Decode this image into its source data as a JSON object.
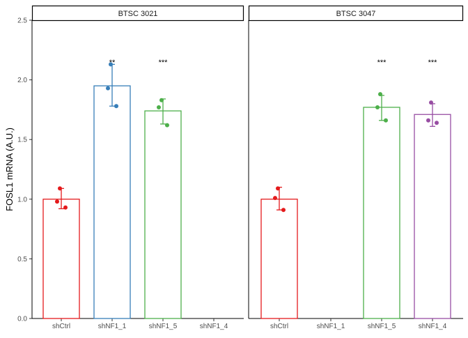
{
  "chart_data": {
    "type": "bar",
    "ylabel": "FOSL1 mRNA  (A.U.)",
    "ylim": [
      0,
      2.5
    ],
    "y_ticks": [
      "0.0",
      "0.5",
      "1.0",
      "1.5",
      "2.0",
      "2.5"
    ],
    "categories": [
      "shCtrl",
      "shNF1_1",
      "shNF1_5",
      "shNF1_4"
    ],
    "grid": false,
    "colors": {
      "shCtrl": "#e41a1c",
      "shNF1_1": "#377eb8",
      "shNF1_5": "#4daf4a",
      "shNF1_4": "#984ea3"
    },
    "panels": [
      {
        "title": "BTSC 3021",
        "bars": [
          {
            "category": "shCtrl",
            "value": 1.0,
            "err_low": 0.92,
            "err_high": 1.09,
            "points": [
              1.09,
              0.98,
              0.93
            ],
            "sig": ""
          },
          {
            "category": "shNF1_1",
            "value": 1.95,
            "err_low": 1.78,
            "err_high": 2.13,
            "points": [
              2.13,
              1.93,
              1.78
            ],
            "sig": "**"
          },
          {
            "category": "shNF1_5",
            "value": 1.74,
            "err_low": 1.63,
            "err_high": 1.84,
            "points": [
              1.83,
              1.77,
              1.62
            ],
            "sig": "***"
          }
        ]
      },
      {
        "title": "BTSC 3047",
        "bars": [
          {
            "category": "shCtrl",
            "value": 1.0,
            "err_low": 0.91,
            "err_high": 1.1,
            "points": [
              1.09,
              1.01,
              0.91
            ],
            "sig": ""
          },
          {
            "category": "shNF1_5",
            "value": 1.77,
            "err_low": 1.66,
            "err_high": 1.87,
            "points": [
              1.88,
              1.77,
              1.66
            ],
            "sig": "***"
          },
          {
            "category": "shNF1_4",
            "value": 1.71,
            "err_low": 1.61,
            "err_high": 1.8,
            "points": [
              1.81,
              1.66,
              1.64
            ],
            "sig": "***"
          }
        ]
      }
    ]
  }
}
